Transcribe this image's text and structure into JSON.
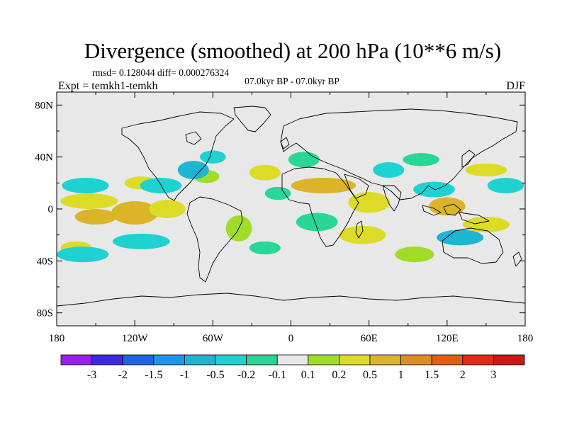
{
  "chart_data": {
    "type": "heatmap",
    "title": "Divergence (smoothed) at 200 hPa (10**6 m/s)",
    "stats_text": "rmsd= 0.128044 diff= 0.000276324",
    "period_text": "07.0kyr BP - 07.0kyr BP",
    "expt_text": "Expt = temkh1-temkh",
    "season": "DJF",
    "x_ticks": [
      "180",
      "120W",
      "60W",
      "0",
      "60E",
      "120E",
      "180"
    ],
    "y_ticks": [
      "80N",
      "40N",
      "0",
      "40S",
      "80S"
    ],
    "x_range": [
      -180,
      180
    ],
    "y_range": [
      -90,
      90
    ],
    "colorbar_labels": [
      "-3",
      "-2",
      "-1.5",
      "-1",
      "-0.5",
      "-0.2",
      "-0.1",
      "0.1",
      "0.2",
      "0.5",
      "1",
      "1.5",
      "2",
      "3"
    ],
    "colorbar_colors": [
      "#9a1ef0",
      "#3c28e6",
      "#1e64e6",
      "#1e96e6",
      "#1eb4d2",
      "#1ed2d2",
      "#28d696",
      "#e8e8e8",
      "#a0dc28",
      "#dcdc28",
      "#dcb428",
      "#dc8c28",
      "#e65a14",
      "#e62814",
      "#d21414"
    ],
    "blobs_positive": [
      {
        "lon": -155,
        "lat": 6,
        "rx": 22,
        "ry": 6,
        "color": "#dcdc28"
      },
      {
        "lon": -150,
        "lat": -6,
        "rx": 16,
        "ry": 6,
        "color": "#dcb428"
      },
      {
        "lon": -120,
        "lat": -3,
        "rx": 18,
        "ry": 9,
        "color": "#dcb428"
      },
      {
        "lon": -95,
        "lat": 0,
        "rx": 14,
        "ry": 7,
        "color": "#dcdc28"
      },
      {
        "lon": -115,
        "lat": 20,
        "rx": 13,
        "ry": 5,
        "color": "#dcdc28"
      },
      {
        "lon": -40,
        "lat": -15,
        "rx": 10,
        "ry": 10,
        "color": "#a0dc28"
      },
      {
        "lon": -20,
        "lat": 28,
        "rx": 12,
        "ry": 6,
        "color": "#dcdc28"
      },
      {
        "lon": 25,
        "lat": 18,
        "rx": 25,
        "ry": 6,
        "color": "#dcb428"
      },
      {
        "lon": 60,
        "lat": 5,
        "rx": 16,
        "ry": 8,
        "color": "#dcdc28"
      },
      {
        "lon": 55,
        "lat": -20,
        "rx": 18,
        "ry": 7,
        "color": "#dcdc28"
      },
      {
        "lon": 120,
        "lat": 2,
        "rx": 14,
        "ry": 7,
        "color": "#dcb428"
      },
      {
        "lon": 150,
        "lat": -12,
        "rx": 18,
        "ry": 6,
        "color": "#dcdc28"
      },
      {
        "lon": 150,
        "lat": 30,
        "rx": 16,
        "ry": 5,
        "color": "#dcdc28"
      },
      {
        "lon": 95,
        "lat": -35,
        "rx": 15,
        "ry": 6,
        "color": "#a0dc28"
      },
      {
        "lon": -165,
        "lat": -30,
        "rx": 12,
        "ry": 5,
        "color": "#dcdc28"
      },
      {
        "lon": -65,
        "lat": 25,
        "rx": 10,
        "ry": 5,
        "color": "#a0dc28"
      }
    ],
    "blobs_negative": [
      {
        "lon": -158,
        "lat": 18,
        "rx": 18,
        "ry": 6,
        "color": "#1ed2d2"
      },
      {
        "lon": -100,
        "lat": 18,
        "rx": 16,
        "ry": 6,
        "color": "#1ed2d2"
      },
      {
        "lon": -75,
        "lat": 30,
        "rx": 12,
        "ry": 7,
        "color": "#1eb4d2"
      },
      {
        "lon": -160,
        "lat": -35,
        "rx": 20,
        "ry": 6,
        "color": "#1ed2d2"
      },
      {
        "lon": -115,
        "lat": -25,
        "rx": 22,
        "ry": 6,
        "color": "#1ed2d2"
      },
      {
        "lon": -60,
        "lat": 40,
        "rx": 10,
        "ry": 5,
        "color": "#1ed2d2"
      },
      {
        "lon": 10,
        "lat": 38,
        "rx": 12,
        "ry": 6,
        "color": "#28d696"
      },
      {
        "lon": 75,
        "lat": 30,
        "rx": 12,
        "ry": 6,
        "color": "#1ed2d2"
      },
      {
        "lon": 110,
        "lat": 15,
        "rx": 16,
        "ry": 6,
        "color": "#1ed2d2"
      },
      {
        "lon": 130,
        "lat": -22,
        "rx": 18,
        "ry": 6,
        "color": "#1eb4d2"
      },
      {
        "lon": 165,
        "lat": 18,
        "rx": 14,
        "ry": 6,
        "color": "#1ed2d2"
      },
      {
        "lon": 20,
        "lat": -10,
        "rx": 16,
        "ry": 7,
        "color": "#28d696"
      },
      {
        "lon": -10,
        "lat": 12,
        "rx": 10,
        "ry": 5,
        "color": "#28d696"
      },
      {
        "lon": 100,
        "lat": 38,
        "rx": 14,
        "ry": 5,
        "color": "#28d696"
      },
      {
        "lon": -20,
        "lat": -30,
        "rx": 12,
        "ry": 5,
        "color": "#28d696"
      }
    ]
  }
}
